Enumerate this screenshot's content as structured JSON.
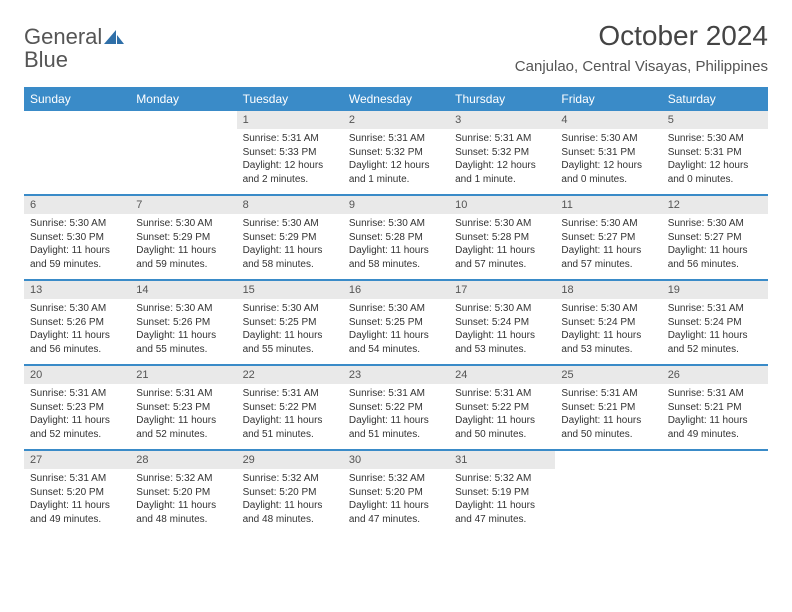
{
  "logo": {
    "text_general": "General",
    "text_blue": "Blue"
  },
  "title": "October 2024",
  "location": "Canjulao, Central Visayas, Philippines",
  "colors": {
    "header_bg": "#3a8bc8",
    "header_text": "#ffffff",
    "daynum_bg": "#e9e9e9",
    "row_border": "#3a8bc8",
    "page_bg": "#ffffff",
    "logo_blue": "#2f6fa8"
  },
  "day_names": [
    "Sunday",
    "Monday",
    "Tuesday",
    "Wednesday",
    "Thursday",
    "Friday",
    "Saturday"
  ],
  "weeks": [
    [
      null,
      null,
      {
        "n": "1",
        "sr": "Sunrise: 5:31 AM",
        "ss": "Sunset: 5:33 PM",
        "dl": "Daylight: 12 hours and 2 minutes."
      },
      {
        "n": "2",
        "sr": "Sunrise: 5:31 AM",
        "ss": "Sunset: 5:32 PM",
        "dl": "Daylight: 12 hours and 1 minute."
      },
      {
        "n": "3",
        "sr": "Sunrise: 5:31 AM",
        "ss": "Sunset: 5:32 PM",
        "dl": "Daylight: 12 hours and 1 minute."
      },
      {
        "n": "4",
        "sr": "Sunrise: 5:30 AM",
        "ss": "Sunset: 5:31 PM",
        "dl": "Daylight: 12 hours and 0 minutes."
      },
      {
        "n": "5",
        "sr": "Sunrise: 5:30 AM",
        "ss": "Sunset: 5:31 PM",
        "dl": "Daylight: 12 hours and 0 minutes."
      }
    ],
    [
      {
        "n": "6",
        "sr": "Sunrise: 5:30 AM",
        "ss": "Sunset: 5:30 PM",
        "dl": "Daylight: 11 hours and 59 minutes."
      },
      {
        "n": "7",
        "sr": "Sunrise: 5:30 AM",
        "ss": "Sunset: 5:29 PM",
        "dl": "Daylight: 11 hours and 59 minutes."
      },
      {
        "n": "8",
        "sr": "Sunrise: 5:30 AM",
        "ss": "Sunset: 5:29 PM",
        "dl": "Daylight: 11 hours and 58 minutes."
      },
      {
        "n": "9",
        "sr": "Sunrise: 5:30 AM",
        "ss": "Sunset: 5:28 PM",
        "dl": "Daylight: 11 hours and 58 minutes."
      },
      {
        "n": "10",
        "sr": "Sunrise: 5:30 AM",
        "ss": "Sunset: 5:28 PM",
        "dl": "Daylight: 11 hours and 57 minutes."
      },
      {
        "n": "11",
        "sr": "Sunrise: 5:30 AM",
        "ss": "Sunset: 5:27 PM",
        "dl": "Daylight: 11 hours and 57 minutes."
      },
      {
        "n": "12",
        "sr": "Sunrise: 5:30 AM",
        "ss": "Sunset: 5:27 PM",
        "dl": "Daylight: 11 hours and 56 minutes."
      }
    ],
    [
      {
        "n": "13",
        "sr": "Sunrise: 5:30 AM",
        "ss": "Sunset: 5:26 PM",
        "dl": "Daylight: 11 hours and 56 minutes."
      },
      {
        "n": "14",
        "sr": "Sunrise: 5:30 AM",
        "ss": "Sunset: 5:26 PM",
        "dl": "Daylight: 11 hours and 55 minutes."
      },
      {
        "n": "15",
        "sr": "Sunrise: 5:30 AM",
        "ss": "Sunset: 5:25 PM",
        "dl": "Daylight: 11 hours and 55 minutes."
      },
      {
        "n": "16",
        "sr": "Sunrise: 5:30 AM",
        "ss": "Sunset: 5:25 PM",
        "dl": "Daylight: 11 hours and 54 minutes."
      },
      {
        "n": "17",
        "sr": "Sunrise: 5:30 AM",
        "ss": "Sunset: 5:24 PM",
        "dl": "Daylight: 11 hours and 53 minutes."
      },
      {
        "n": "18",
        "sr": "Sunrise: 5:30 AM",
        "ss": "Sunset: 5:24 PM",
        "dl": "Daylight: 11 hours and 53 minutes."
      },
      {
        "n": "19",
        "sr": "Sunrise: 5:31 AM",
        "ss": "Sunset: 5:24 PM",
        "dl": "Daylight: 11 hours and 52 minutes."
      }
    ],
    [
      {
        "n": "20",
        "sr": "Sunrise: 5:31 AM",
        "ss": "Sunset: 5:23 PM",
        "dl": "Daylight: 11 hours and 52 minutes."
      },
      {
        "n": "21",
        "sr": "Sunrise: 5:31 AM",
        "ss": "Sunset: 5:23 PM",
        "dl": "Daylight: 11 hours and 52 minutes."
      },
      {
        "n": "22",
        "sr": "Sunrise: 5:31 AM",
        "ss": "Sunset: 5:22 PM",
        "dl": "Daylight: 11 hours and 51 minutes."
      },
      {
        "n": "23",
        "sr": "Sunrise: 5:31 AM",
        "ss": "Sunset: 5:22 PM",
        "dl": "Daylight: 11 hours and 51 minutes."
      },
      {
        "n": "24",
        "sr": "Sunrise: 5:31 AM",
        "ss": "Sunset: 5:22 PM",
        "dl": "Daylight: 11 hours and 50 minutes."
      },
      {
        "n": "25",
        "sr": "Sunrise: 5:31 AM",
        "ss": "Sunset: 5:21 PM",
        "dl": "Daylight: 11 hours and 50 minutes."
      },
      {
        "n": "26",
        "sr": "Sunrise: 5:31 AM",
        "ss": "Sunset: 5:21 PM",
        "dl": "Daylight: 11 hours and 49 minutes."
      }
    ],
    [
      {
        "n": "27",
        "sr": "Sunrise: 5:31 AM",
        "ss": "Sunset: 5:20 PM",
        "dl": "Daylight: 11 hours and 49 minutes."
      },
      {
        "n": "28",
        "sr": "Sunrise: 5:32 AM",
        "ss": "Sunset: 5:20 PM",
        "dl": "Daylight: 11 hours and 48 minutes."
      },
      {
        "n": "29",
        "sr": "Sunrise: 5:32 AM",
        "ss": "Sunset: 5:20 PM",
        "dl": "Daylight: 11 hours and 48 minutes."
      },
      {
        "n": "30",
        "sr": "Sunrise: 5:32 AM",
        "ss": "Sunset: 5:20 PM",
        "dl": "Daylight: 11 hours and 47 minutes."
      },
      {
        "n": "31",
        "sr": "Sunrise: 5:32 AM",
        "ss": "Sunset: 5:19 PM",
        "dl": "Daylight: 11 hours and 47 minutes."
      },
      null,
      null
    ]
  ]
}
